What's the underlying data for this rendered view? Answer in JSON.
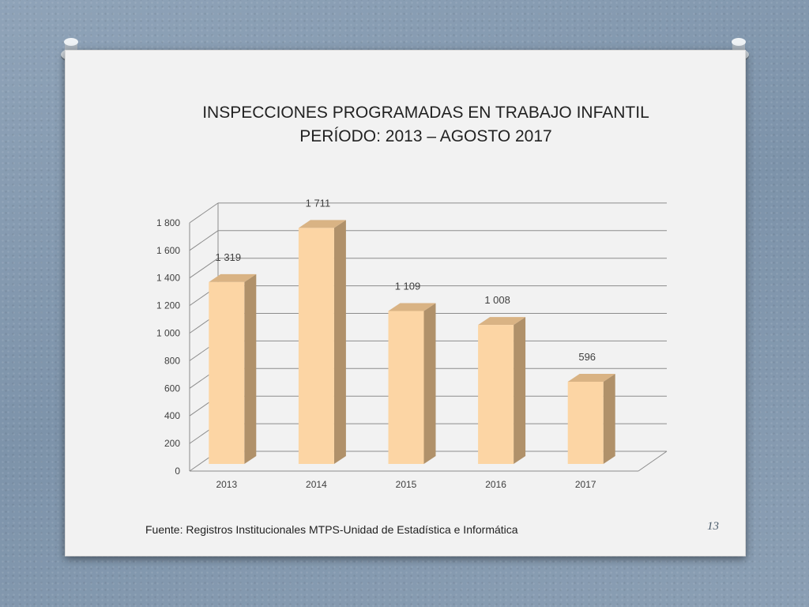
{
  "slide": {
    "title_line1": "INSPECCIONES PROGRAMADAS EN TRABAJO INFANTIL",
    "title_line2": "PERÍODO: 2013 – AGOSTO 2017",
    "source": "Fuente: Registros Institucionales MTPS-Unidad de Estadística e Informática",
    "page_number": "13"
  },
  "chart_data": {
    "type": "bar",
    "style": "3d-column",
    "title": "INSPECCIONES PROGRAMADAS EN TRABAJO INFANTIL PERÍODO: 2013 – AGOSTO 2017",
    "categories": [
      "2013",
      "2014",
      "2015",
      "2016",
      "2017"
    ],
    "values": [
      1319,
      1711,
      1109,
      1008,
      596
    ],
    "value_labels": [
      "1 319",
      "1 711",
      "1 109",
      "1 008",
      "596"
    ],
    "y_ticks": [
      0,
      200,
      400,
      600,
      800,
      1000,
      1200,
      1400,
      1600,
      1800
    ],
    "y_tick_labels": [
      "0",
      "200",
      "400",
      "600",
      "800",
      "1 000",
      "1 200",
      "1 400",
      "1 600",
      "1 800"
    ],
    "ylim": [
      0,
      1800
    ],
    "grid": true,
    "legend": "none",
    "colors": {
      "bar_front": "#fcd5a4",
      "bar_side": "#b0916a",
      "bar_top": "#d9b384",
      "grid": "#8c8c8c"
    }
  }
}
